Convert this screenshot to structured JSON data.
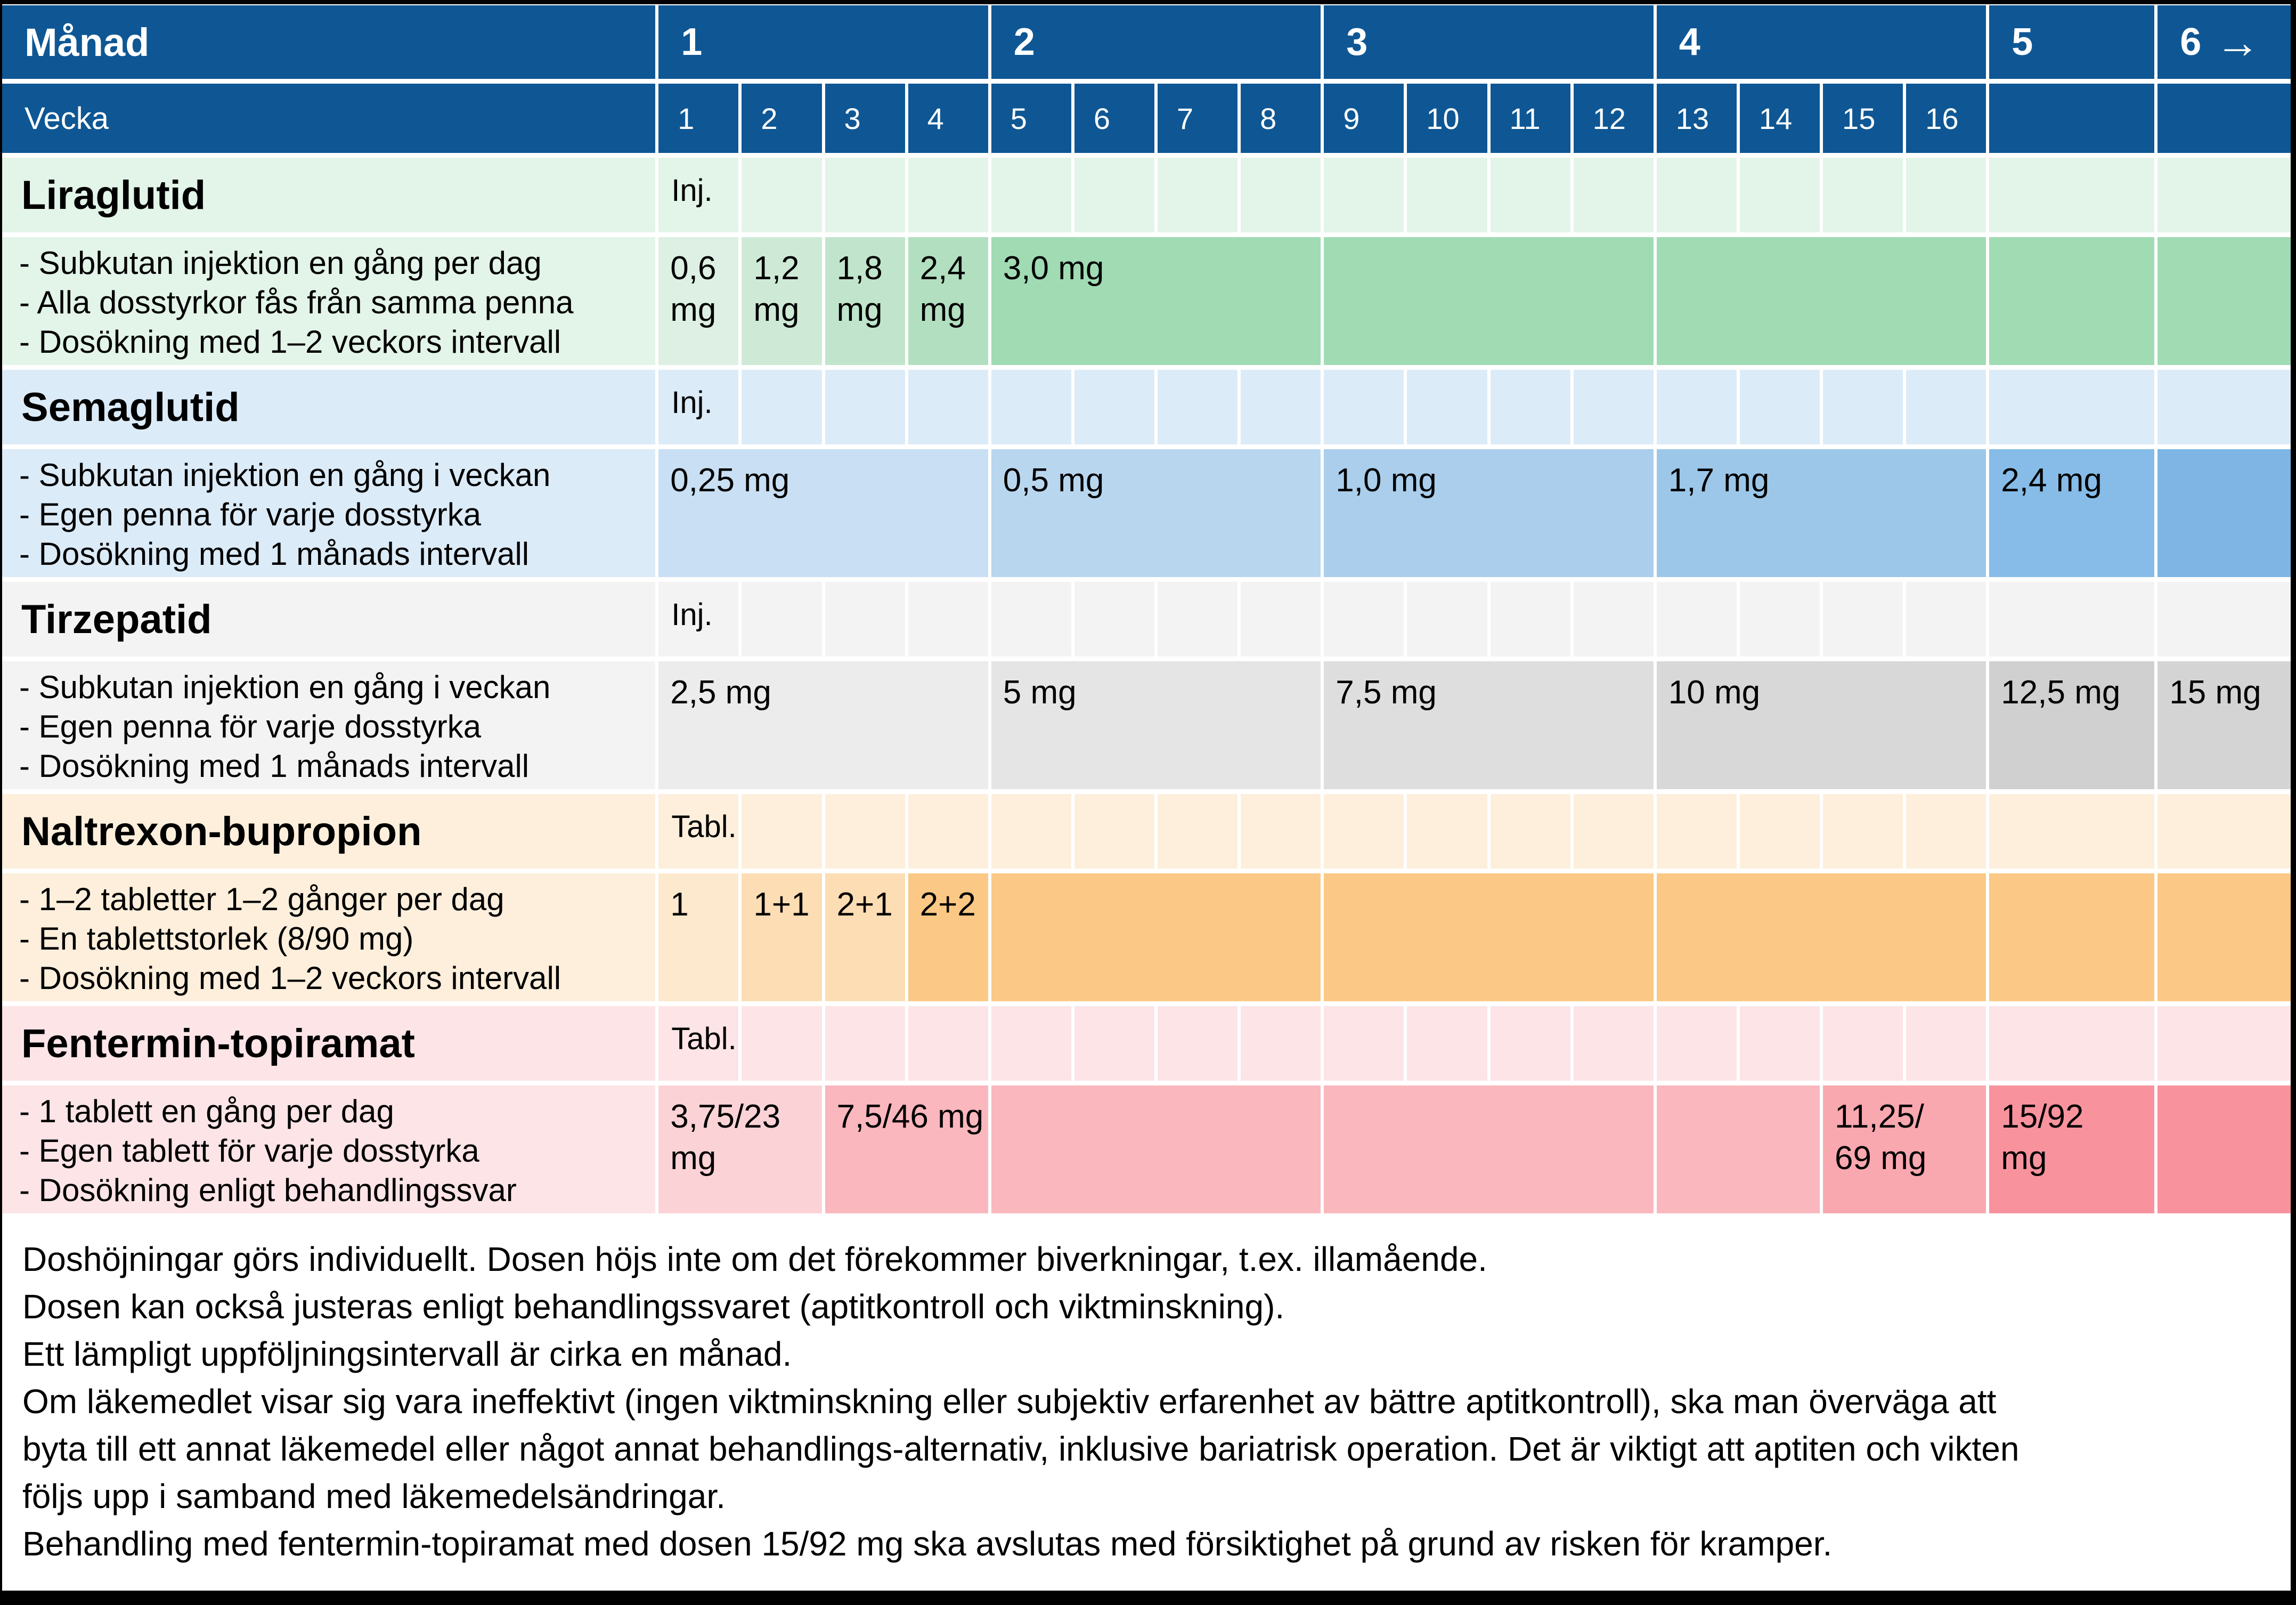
{
  "colors": {
    "header_blue": "#0E5794",
    "white_gap": "#FFFFFF",
    "lira": {
      "head": "#E3F4E9",
      "w1": "#DDF0E3",
      "w2": "#CEEAD7",
      "w3": "#C0E5CC",
      "w4": "#B2DFC0",
      "span": "#A0DBB4"
    },
    "sema": {
      "head": "#DCEBF8",
      "d1": "#C9DFF3",
      "d2": "#B9D6EF",
      "d3": "#AACEEB",
      "d4": "#9CC7E8",
      "d5": "#86BCE7",
      "d6": "#7EB5E4"
    },
    "tirz": {
      "head": "#F3F3F3",
      "d1": "#ECECEC",
      "d2": "#E5E5E5",
      "d3": "#DEDEDE",
      "d4": "#D8D8D8",
      "d5": "#D0D0D0",
      "d6": "#D4D4D4"
    },
    "nalt": {
      "head": "#FDEFDC",
      "w1": "#FDE9CD",
      "w2": "#FCDDB4",
      "w3": "#FCDDB4",
      "span": "#FBC985"
    },
    "fent": {
      "head": "#FCE4E7",
      "d1": "#FBD3D7",
      "d2": "#FAB7BD",
      "d3": "#F9A8AF",
      "d4": "#F8939E"
    }
  },
  "header": {
    "month_label": "Månad",
    "week_label": "Vecka",
    "months": [
      "1",
      "2",
      "3",
      "4",
      "5",
      "6"
    ],
    "month6_arrow": "→",
    "weeks": [
      "1",
      "2",
      "3",
      "4",
      "5",
      "6",
      "7",
      "8",
      "9",
      "10",
      "11",
      "12",
      "13",
      "14",
      "15",
      "16"
    ]
  },
  "sections": {
    "lira": {
      "name": "Liraglutid",
      "route": "Inj.",
      "bullets": [
        "- Subkutan injektion en gång per dag",
        "- Alla dosstyrkor fås från samma penna",
        "- Dosökning med 1–2 veckors intervall"
      ],
      "doses": {
        "w1": "0,6\nmg",
        "w2": "1,2\nmg",
        "w3": "1,8\nmg",
        "w4": "2,4\nmg",
        "maint": "3,0 mg"
      }
    },
    "sema": {
      "name": "Semaglutid",
      "route": "Inj.",
      "bullets": [
        "- Subkutan injektion en gång i veckan",
        "- Egen penna för varje dosstyrka",
        "- Dosökning med 1 månads intervall"
      ],
      "doses": {
        "m1": "0,25 mg",
        "m2": "0,5 mg",
        "m3": "1,0 mg",
        "m4": "1,7 mg",
        "m5": "2,4 mg"
      }
    },
    "tirz": {
      "name": "Tirzepatid",
      "route": "Inj.",
      "bullets": [
        "- Subkutan injektion en gång i veckan",
        "- Egen penna för varje dosstyrka",
        "- Dosökning med 1 månads intervall"
      ],
      "doses": {
        "m1": "2,5 mg",
        "m2": "5 mg",
        "m3": "7,5 mg",
        "m4": "10 mg",
        "m5": "12,5 mg",
        "m6": "15 mg"
      }
    },
    "nalt": {
      "name": "Naltrexon-bupropion",
      "route": "Tabl.",
      "bullets": [
        "- 1–2 tabletter 1–2 gånger per dag",
        "- En tablettstorlek (8/90 mg)",
        "- Dosökning med 1–2 veckors intervall"
      ],
      "doses": {
        "w1": "1",
        "w2": "1+1",
        "w3": "2+1",
        "w4": "2+2"
      }
    },
    "fent": {
      "name": "Fentermin-topiramat",
      "route": "Tabl.",
      "bullets": [
        "- 1 tablett en gång per dag",
        "- Egen tablett för varje dosstyrka",
        "- Dosökning enligt behandlingssvar"
      ],
      "doses": {
        "w1_2": "3,75/23 mg",
        "w3_4": "7,5/46 mg",
        "w15_16": "11,25/\n69 mg",
        "m5": "15/92\nmg"
      }
    }
  },
  "footer": {
    "lines": [
      "Doshöjningar görs individuellt. Dosen höjs inte om det förekommer biverkningar, t.ex. illamående.",
      "Dosen kan också justeras enligt behandlingssvaret (aptitkontroll och viktminskning).",
      "Ett lämpligt uppföljningsintervall är cirka en månad.",
      "Om läkemedlet visar sig vara ineffektivt (ingen viktminskning eller subjektiv erfarenhet av bättre aptitkontroll), ska man överväga att",
      "byta till ett annat läkemedel eller något annat behandlings-alternativ, inklusive bariatrisk operation. Det är viktigt att aptiten och vikten",
      "följs upp i samband med läkemedelsändringar.",
      "Behandling med fentermin-topiramat med dosen 15/92 mg ska avslutas med försiktighet på grund av risken för kramper."
    ]
  }
}
